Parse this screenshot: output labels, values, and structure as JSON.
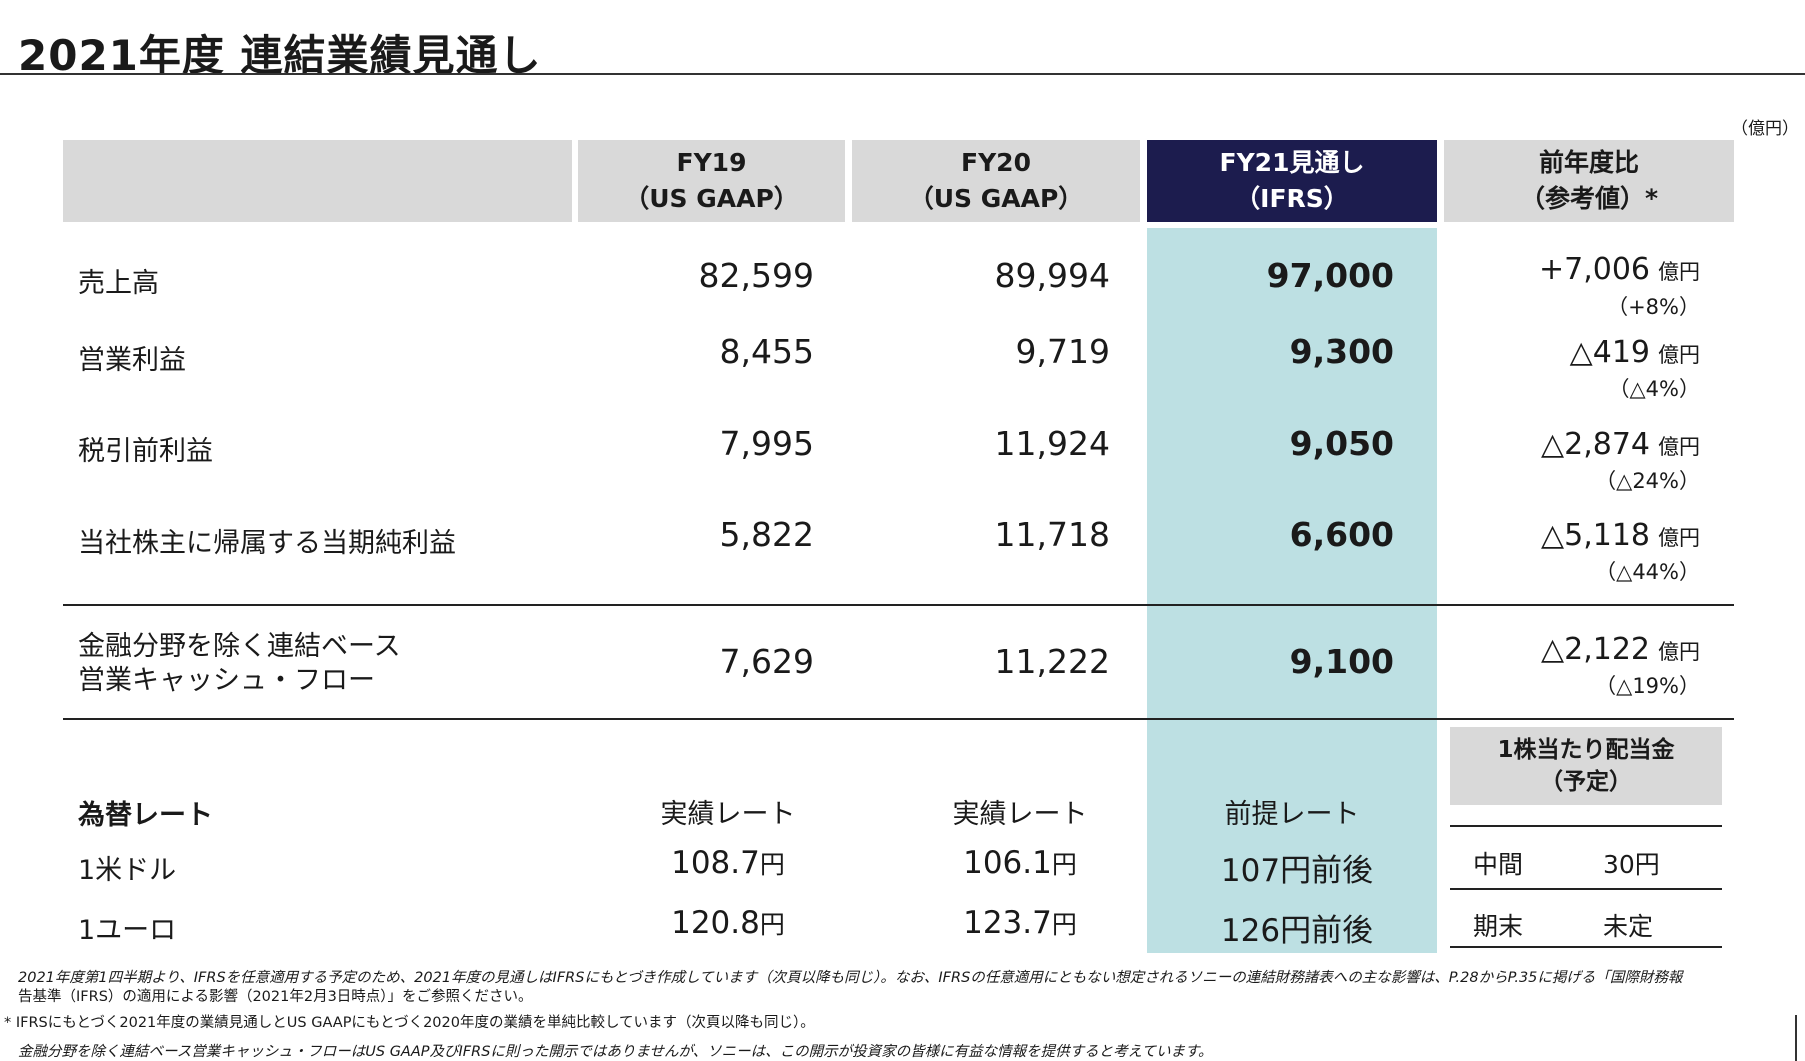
{
  "title": "2021年度 連結業績見通し",
  "unit_label": "（億円）",
  "headers": {
    "fy19": {
      "line1": "FY19",
      "line2": "（US GAAP）"
    },
    "fy20": {
      "line1": "FY20",
      "line2": "（US GAAP）"
    },
    "fy21": {
      "line1": "FY21見通し",
      "line2": "（IFRS）"
    },
    "yoy": {
      "line1": "前年度比",
      "line2": "（参考値）*"
    }
  },
  "rows": [
    {
      "label": "売上高",
      "fy19": "82,599",
      "fy20": "89,994",
      "fy21": "97,000",
      "delta": "+7,006",
      "delta_unit": "億円",
      "pct": "（+8%）"
    },
    {
      "label": "営業利益",
      "fy19": "8,455",
      "fy20": "9,719",
      "fy21": "9,300",
      "delta": "△419",
      "delta_unit": "億円",
      "pct": "（△4%）"
    },
    {
      "label": "税引前利益",
      "fy19": "7,995",
      "fy20": "11,924",
      "fy21": "9,050",
      "delta": "△2,874",
      "delta_unit": "億円",
      "pct": "（△24%）"
    },
    {
      "label": "当社株主に帰属する当期純利益",
      "fy19": "5,822",
      "fy20": "11,718",
      "fy21": "6,600",
      "delta": "△5,118",
      "delta_unit": "億円",
      "pct": "（△44%）"
    }
  ],
  "cashflow": {
    "label_line1": "金融分野を除く連結ベース",
    "label_line2": "営業キャッシュ・フロー",
    "fy19": "7,629",
    "fy20": "11,222",
    "fy21": "9,100",
    "delta": "△2,122",
    "delta_unit": "億円",
    "pct": "（△19%）"
  },
  "fx": {
    "label": "為替レート",
    "col_fy19": "実績レート",
    "col_fy20": "実績レート",
    "col_fy21": "前提レート",
    "yen_suffix": "円",
    "rows": [
      {
        "label": "1米ドル",
        "fy19": "108.7",
        "fy20": "106.1",
        "fy21": "107円前後"
      },
      {
        "label": "1ユーロ",
        "fy19": "120.8",
        "fy20": "123.7",
        "fy21": "126円前後"
      }
    ]
  },
  "dividend": {
    "title_line1": "1株当たり配当金",
    "title_line2": "（予定）",
    "rows": [
      {
        "label": "中間",
        "value": "30円"
      },
      {
        "label": "期末",
        "value": "未定"
      }
    ]
  },
  "footnotes": {
    "note1_line1": "2021年度第1四半期より、IFRSを任意適用する予定のため、2021年度の見通しはIFRSにもとづき作成しています（次頁以降も同じ）。なお、IFRSの任意適用にともない想定されるソニーの連結財務諸表への主な影響は、P.28からP.35に掲げる「国際財務報",
    "note1_line2": "告基準（IFRS）の適用による影響（2021年2月3日時点）」をご参照ください。",
    "note2": "* IFRSにもとづく2021年度の業績見通しとUS GAAPにもとづく2020年度の業績を単純比較しています（次頁以降も同じ）。",
    "note3": "金融分野を除く連結ベース営業キャッシュ・フローはUS GAAP及びIFRSに則った開示ではありませんが、ソニーは、この開示が投資家の皆様に有益な情報を提供すると考えています。"
  },
  "colors": {
    "header_gray": "#d9d9d9",
    "header_navy": "#1c1c4e",
    "highlight": "#bde0e3"
  }
}
